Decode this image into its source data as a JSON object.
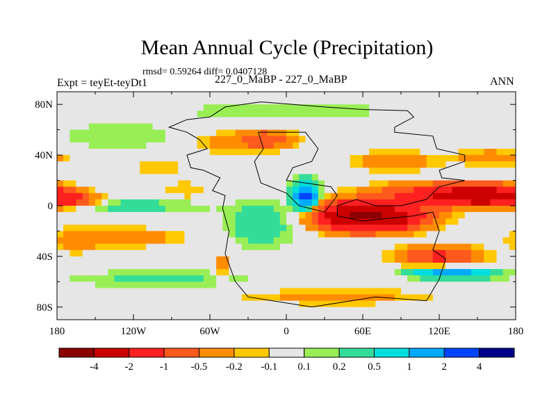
{
  "chart_data": {
    "type": "heatmap",
    "title": "Mean Annual Cycle (Precipitation)",
    "stats_line": "rmsd= 0.59264 diff= 0.0407128",
    "left_label": "Expt = teyEt-teyDt1",
    "center_label": "227_0_MaBP - 227_0_MaBP",
    "right_label": "ANN",
    "xlim": [
      -180,
      180
    ],
    "ylim": [
      -90,
      90
    ],
    "x_ticks": [
      {
        "value": -180,
        "label": "180"
      },
      {
        "value": -120,
        "label": "120W"
      },
      {
        "value": -60,
        "label": "60W"
      },
      {
        "value": 0,
        "label": "0"
      },
      {
        "value": 60,
        "label": "60E"
      },
      {
        "value": 120,
        "label": "120E"
      },
      {
        "value": 180,
        "label": "180"
      }
    ],
    "y_ticks": [
      {
        "value": 80,
        "label": "80N"
      },
      {
        "value": 40,
        "label": "40N"
      },
      {
        "value": 0,
        "label": "0"
      },
      {
        "value": -40,
        "label": "40S"
      },
      {
        "value": -80,
        "label": "80S"
      }
    ],
    "colorbar": {
      "labels": [
        "-4",
        "-2",
        "-1",
        "-0.5",
        "-0.2",
        "-0.1",
        "0.1",
        "0.2",
        "0.5",
        "1",
        "2",
        "4"
      ],
      "colors": [
        "#8b0000",
        "#cc0000",
        "#ff2020",
        "#ff5a1e",
        "#ff8c00",
        "#ffc800",
        "#e6e6e6",
        "#99ee55",
        "#33dd99",
        "#00dddd",
        "#00aaff",
        "#0044ff",
        "#00008b"
      ]
    },
    "anomaly_features": [
      {
        "lon": -125,
        "lat": -25,
        "sx": 30,
        "sy": 5,
        "value": -0.35
      },
      {
        "lon": -165,
        "lat": -28,
        "sx": 15,
        "sy": 7,
        "value": -0.25
      },
      {
        "lon": -170,
        "lat": 5,
        "sx": 15,
        "sy": 4,
        "value": -1.0
      },
      {
        "lon": -120,
        "lat": 0,
        "sx": 40,
        "sy": 4,
        "value": 0.3
      },
      {
        "lon": -100,
        "lat": 30,
        "sx": 20,
        "sy": 3,
        "value": -0.2
      },
      {
        "lon": -80,
        "lat": 12,
        "sx": 15,
        "sy": 5,
        "value": -0.2
      },
      {
        "lon": -130,
        "lat": 55,
        "sx": 35,
        "sy": 8,
        "value": 0.2
      },
      {
        "lon": -35,
        "lat": 50,
        "sx": 25,
        "sy": 6,
        "value": -0.4
      },
      {
        "lon": -15,
        "lat": 53,
        "sx": 12,
        "sy": 4,
        "value": -0.7
      },
      {
        "lon": 15,
        "lat": 8,
        "sx": 6,
        "sy": 7,
        "value": 2.5
      },
      {
        "lon": 55,
        "lat": -8,
        "sx": 20,
        "sy": 7,
        "value": -3.5
      },
      {
        "lon": 80,
        "lat": -10,
        "sx": 22,
        "sy": 6,
        "value": -2.0
      },
      {
        "lon": 115,
        "lat": 8,
        "sx": 30,
        "sy": 6,
        "value": -1.5
      },
      {
        "lon": 155,
        "lat": 8,
        "sx": 20,
        "sy": 5,
        "value": -3.0
      },
      {
        "lon": 120,
        "lat": -40,
        "sx": 20,
        "sy": 5,
        "value": -1.2
      },
      {
        "lon": 130,
        "lat": -53,
        "sx": 20,
        "sy": 3,
        "value": 1.5
      },
      {
        "lon": -50,
        "lat": -48,
        "sx": 3,
        "sy": 6,
        "value": -0.5
      },
      {
        "lon": -20,
        "lat": -15,
        "sx": 18,
        "sy": 12,
        "value": 0.4
      },
      {
        "lon": 85,
        "lat": 35,
        "sx": 20,
        "sy": 5,
        "value": -0.5
      },
      {
        "lon": 160,
        "lat": 38,
        "sx": 20,
        "sy": 4,
        "value": -0.4
      },
      {
        "lon": 40,
        "lat": -72,
        "sx": 50,
        "sy": 4,
        "value": -0.3
      },
      {
        "lon": -100,
        "lat": -58,
        "sx": 50,
        "sy": 5,
        "value": 0.25
      },
      {
        "lon": 0,
        "lat": 75,
        "sx": 60,
        "sy": 6,
        "value": 0.2
      }
    ],
    "outline": [
      [
        -48,
        78
      ],
      [
        -20,
        82
      ],
      [
        30,
        78
      ],
      [
        60,
        76
      ],
      [
        95,
        75
      ],
      [
        100,
        70
      ],
      [
        85,
        62
      ],
      [
        85,
        58
      ],
      [
        115,
        55
      ],
      [
        118,
        45
      ],
      [
        140,
        40
      ],
      [
        140,
        35
      ],
      [
        120,
        28
      ],
      [
        122,
        22
      ],
      [
        140,
        20
      ],
      [
        120,
        15
      ],
      [
        110,
        5
      ],
      [
        90,
        0
      ],
      [
        70,
        0
      ],
      [
        55,
        5
      ],
      [
        40,
        0
      ],
      [
        40,
        -8
      ],
      [
        60,
        -12
      ],
      [
        100,
        -8
      ],
      [
        115,
        -5
      ],
      [
        120,
        -20
      ],
      [
        115,
        -35
      ],
      [
        125,
        -42
      ],
      [
        120,
        -58
      ],
      [
        110,
        -75
      ],
      [
        70,
        -72
      ],
      [
        20,
        -80
      ],
      [
        -30,
        -72
      ],
      [
        -40,
        -60
      ],
      [
        -48,
        -38
      ],
      [
        -45,
        -20
      ],
      [
        -50,
        -2
      ],
      [
        -48,
        8
      ],
      [
        -58,
        12
      ],
      [
        -52,
        22
      ],
      [
        -65,
        28
      ],
      [
        -75,
        30
      ],
      [
        -78,
        40
      ],
      [
        -62,
        45
      ],
      [
        -68,
        52
      ],
      [
        -78,
        58
      ],
      [
        -92,
        62
      ],
      [
        -78,
        68
      ],
      [
        -60,
        70
      ],
      [
        -48,
        78
      ]
    ],
    "outline2": [
      [
        -22,
        58
      ],
      [
        15,
        58
      ],
      [
        25,
        45
      ],
      [
        20,
        35
      ],
      [
        5,
        30
      ],
      [
        0,
        20
      ],
      [
        15,
        18
      ],
      [
        35,
        15
      ],
      [
        40,
        8
      ],
      [
        30,
        -5
      ],
      [
        10,
        0
      ],
      [
        0,
        10
      ],
      [
        -20,
        18
      ],
      [
        -25,
        35
      ],
      [
        -18,
        45
      ],
      [
        -22,
        58
      ]
    ]
  }
}
